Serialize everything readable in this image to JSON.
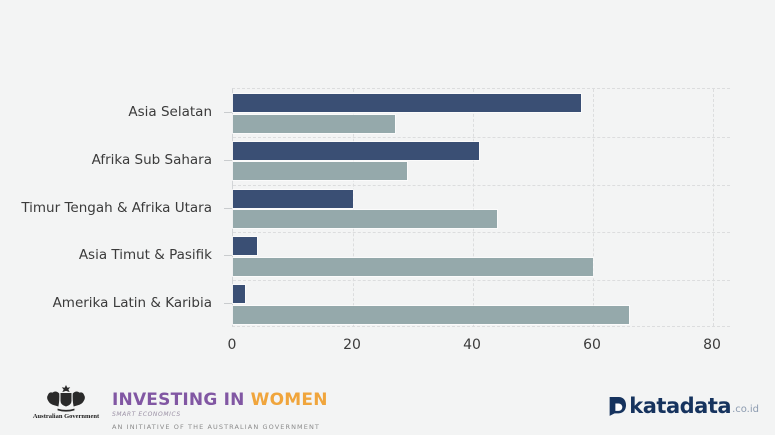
{
  "page": {
    "background": "#F3F4F4"
  },
  "chart_data": {
    "type": "bar",
    "orientation": "horizontal",
    "title": "",
    "categories": [
      "Asia Selatan",
      "Afrika Sub Sahara",
      "Timur Tengah & Afrika Utara",
      "Asia Timut & Pasifik",
      "Amerika Latin & Karibia"
    ],
    "series": [
      {
        "name": "series-dark-blue",
        "color": "#3A4F74",
        "values": [
          58,
          41,
          20,
          4,
          2
        ]
      },
      {
        "name": "series-light-gray",
        "color": "#95A9AB",
        "values": [
          27,
          29,
          44,
          60,
          66
        ]
      }
    ],
    "xlim": [
      0,
      83
    ],
    "xticks": [
      0,
      20,
      40,
      60,
      80
    ],
    "grid": "dashed",
    "legend": "none",
    "bar_outline": "#FFFFFF",
    "background": "#F3F4F4"
  },
  "footer": {
    "crest_caption": "Australian Government",
    "iw_line1_part1": "INVESTING IN ",
    "iw_line1_part2": "WOMEN",
    "iw_line2": "SMART ECONOMICS",
    "iw_line3": "AN INITIATIVE OF THE AUSTRALIAN GOVERNMENT",
    "katadata_name": "katadata",
    "katadata_suffix": ".co.id",
    "colors": {
      "purple": "#8157A3",
      "orange": "#F0A53C",
      "navy": "#16335E"
    }
  }
}
